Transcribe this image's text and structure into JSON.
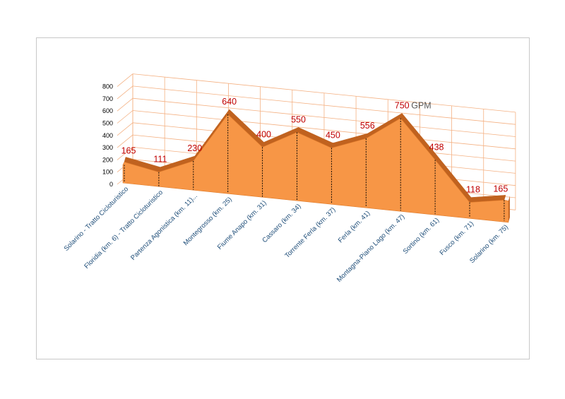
{
  "chart_data": {
    "type": "area",
    "categories": [
      "Solarino - Tratto Cicloturistico",
      "Floridia (km. 6) - Tratto Cicloturistico",
      "Partenza Agonistica (km. 11)...",
      "Montegrosso (km. 25)",
      "Fiume Anapo (km. 31)",
      "Cassaro (km. 34)",
      "Torrente Ferla (km. 37)",
      "Ferla (km. 41)",
      "Montagna-Piano Lago (km. 47)",
      "Sortino (km. 61)",
      "Fusco (km. 71)",
      "Solarino (km. 75)"
    ],
    "values": [
      165,
      111,
      230,
      640,
      400,
      550,
      450,
      556,
      750,
      438,
      118,
      165
    ],
    "data_labels": [
      "165",
      "111",
      "230",
      "640",
      "400",
      "550",
      "450",
      "556",
      "750",
      "438",
      "118",
      "165"
    ],
    "annotation": {
      "index": 8,
      "text": "GPM"
    },
    "y_ticks": [
      "0",
      "100",
      "200",
      "300",
      "400",
      "500",
      "600",
      "700",
      "800"
    ],
    "ylim": [
      0,
      800
    ],
    "title": "",
    "xlabel": "",
    "ylabel": "",
    "grid": true,
    "three_d": true,
    "colors": {
      "fill": "#f79646",
      "top_face": "#c0621f",
      "label": "#c00000",
      "gridline": "#f4b183",
      "axis_label": "#1f4e79"
    }
  }
}
